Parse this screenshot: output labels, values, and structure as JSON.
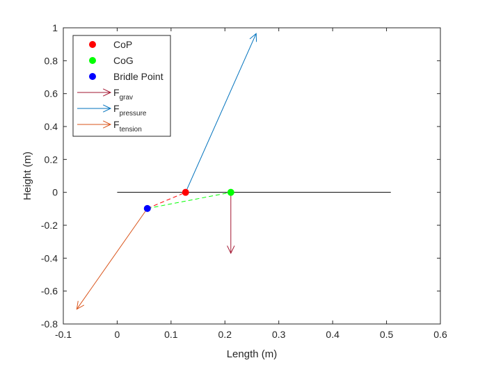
{
  "chart_data": {
    "type": "scatter",
    "title": "",
    "xlabel": "Length (m)",
    "ylabel": "Height (m)",
    "xlim": [
      -0.1,
      0.6
    ],
    "ylim": [
      -0.8,
      1
    ],
    "grid": false,
    "legend_position": "top-left",
    "x_ticks": [
      -0.1,
      0,
      0.1,
      0.2,
      0.3,
      0.4,
      0.5,
      0.6
    ],
    "x_tick_labels": [
      "-0.1",
      "0",
      "0.1",
      "0.2",
      "0.3",
      "0.4",
      "0.5",
      "0.6"
    ],
    "y_ticks": [
      1,
      0.8,
      0.6,
      0.4,
      0.2,
      0,
      -0.2,
      -0.4,
      -0.6,
      -0.8
    ],
    "y_tick_labels": [
      "1",
      "0.8",
      "0.6",
      "0.4",
      "0.2",
      "0",
      "-0.2",
      "-0.4",
      "-0.6",
      "-0.8"
    ],
    "chord_line": {
      "x": [
        0,
        0.508
      ],
      "y": [
        0,
        0
      ],
      "color": "#000000"
    },
    "points": [
      {
        "name": "CoP",
        "x": 0.127,
        "y": 0,
        "color": "#ff0000"
      },
      {
        "name": "CoG",
        "x": 0.211,
        "y": 0,
        "color": "#00ff00"
      },
      {
        "name": "Bridle Point",
        "x": 0.056,
        "y": -0.098,
        "color": "#0000ff"
      }
    ],
    "dashed_links": [
      {
        "from": [
          0.056,
          -0.098
        ],
        "to": [
          0.127,
          0
        ],
        "color": "#ff0000"
      },
      {
        "from": [
          0.056,
          -0.098
        ],
        "to": [
          0.211,
          0
        ],
        "color": "#00ff00"
      }
    ],
    "vectors": [
      {
        "name": "F",
        "subscript": "grav",
        "x0": 0.211,
        "y0": 0,
        "x1": 0.211,
        "y1": -0.37,
        "color": "#a2142f"
      },
      {
        "name": "F",
        "subscript": "pressure",
        "x0": 0.127,
        "y0": 0,
        "x1": 0.258,
        "y1": 0.965,
        "color": "#0072bd"
      },
      {
        "name": "F",
        "subscript": "tension",
        "x0": 0.056,
        "y0": -0.098,
        "x1": -0.075,
        "y1": -0.71,
        "color": "#d95319"
      }
    ],
    "legend": [
      {
        "label": "CoP",
        "sub": "",
        "kind": "marker",
        "color": "#ff0000"
      },
      {
        "label": "CoG",
        "sub": "",
        "kind": "marker",
        "color": "#00ff00"
      },
      {
        "label": "Bridle Point",
        "sub": "",
        "kind": "marker",
        "color": "#0000ff"
      },
      {
        "label": "F",
        "sub": "grav",
        "kind": "arrow",
        "color": "#a2142f"
      },
      {
        "label": "F",
        "sub": "pressure",
        "kind": "arrow",
        "color": "#0072bd"
      },
      {
        "label": "F",
        "sub": "tension",
        "kind": "arrow",
        "color": "#d95319"
      }
    ]
  }
}
